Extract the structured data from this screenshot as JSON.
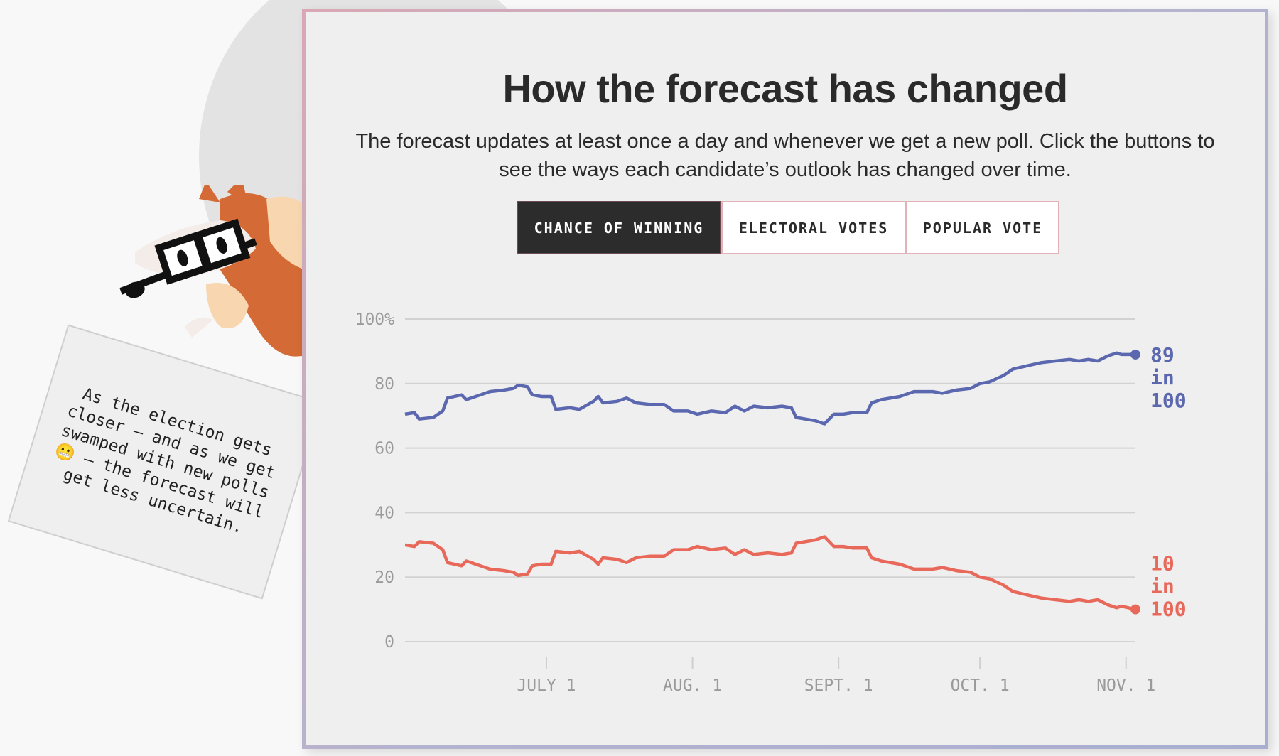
{
  "header": {
    "title": "How the forecast has changed",
    "subtitle": "The forecast updates at least once a day and whenever we get a new poll. Click the buttons to see the ways each candidate’s outlook has changed over time."
  },
  "tabs": [
    {
      "label": "CHANCE OF WINNING",
      "active": true
    },
    {
      "label": "ELECTORAL VOTES",
      "active": false
    },
    {
      "label": "POPULAR VOTE",
      "active": false
    }
  ],
  "note": {
    "text": "As the election gets closer — and as we get swamped with new polls 😬 — the forecast will get less uncertain."
  },
  "chart_data": {
    "type": "line",
    "title": "How the forecast has changed",
    "xlabel": "",
    "ylabel": "Chance of winning",
    "x_unit": "days since June 1",
    "xlim": [
      0,
      155
    ],
    "ylim": [
      0,
      100
    ],
    "y_ticks": [
      {
        "v": 100,
        "label": "100%"
      },
      {
        "v": 80,
        "label": "80"
      },
      {
        "v": 60,
        "label": "60"
      },
      {
        "v": 40,
        "label": "40"
      },
      {
        "v": 20,
        "label": "20"
      },
      {
        "v": 0,
        "label": "0"
      }
    ],
    "x_ticks": [
      {
        "v": 30,
        "label": "JULY 1"
      },
      {
        "v": 61,
        "label": "AUG. 1"
      },
      {
        "v": 92,
        "label": "SEPT. 1"
      },
      {
        "v": 122,
        "label": "OCT. 1"
      },
      {
        "v": 153,
        "label": "NOV. 1"
      }
    ],
    "x": [
      0,
      2,
      3,
      6,
      8,
      9,
      12,
      13,
      16,
      18,
      21,
      23,
      24,
      26,
      27,
      29,
      31,
      32,
      35,
      37,
      40,
      41,
      42,
      45,
      47,
      49,
      52,
      55,
      57,
      60,
      62,
      65,
      68,
      70,
      72,
      74,
      77,
      80,
      82,
      83,
      87,
      89,
      91,
      93,
      95,
      98,
      99,
      101,
      105,
      108,
      112,
      114,
      117,
      120,
      122,
      124,
      127,
      129,
      132,
      135,
      138,
      141,
      143,
      145,
      147,
      149,
      151,
      152,
      155
    ],
    "series": [
      {
        "name": "blue",
        "color": "#5b68b0",
        "end_label": [
          "89",
          "in",
          "100"
        ],
        "values": [
          70.5,
          71,
          69,
          69.5,
          71.5,
          75.5,
          76.5,
          75,
          76.5,
          77.5,
          78,
          78.5,
          79.5,
          79,
          76.5,
          76,
          76,
          72,
          72.5,
          72,
          74.5,
          76,
          74,
          74.5,
          75.5,
          74,
          73.5,
          73.5,
          71.5,
          71.5,
          70.5,
          71.5,
          71,
          73,
          71.5,
          73,
          72.5,
          73,
          72.5,
          69.5,
          68.5,
          67.5,
          70.5,
          70.5,
          71,
          71,
          74,
          75,
          76,
          77.5,
          77.5,
          77,
          78,
          78.5,
          80,
          80.5,
          82.5,
          84.5,
          85.5,
          86.5,
          87,
          87.5,
          87,
          87.5,
          87,
          88.5,
          89.5,
          89,
          89
        ]
      },
      {
        "name": "red",
        "color": "#e8685a",
        "end_label": [
          "10",
          "in",
          "100"
        ],
        "values": [
          30,
          29.5,
          31,
          30.5,
          28.5,
          24.5,
          23.5,
          25,
          23.5,
          22.5,
          22,
          21.5,
          20.5,
          21,
          23.5,
          24,
          24,
          28,
          27.5,
          28,
          25.5,
          24,
          26,
          25.5,
          24.5,
          26,
          26.5,
          26.5,
          28.5,
          28.5,
          29.5,
          28.5,
          29,
          27,
          28.5,
          27,
          27.5,
          27,
          27.5,
          30.5,
          31.5,
          32.5,
          29.5,
          29.5,
          29,
          29,
          26,
          25,
          24,
          22.5,
          22.5,
          23,
          22,
          21.5,
          20,
          19.5,
          17.5,
          15.5,
          14.5,
          13.5,
          13,
          12.5,
          13,
          12.5,
          13,
          11.5,
          10.5,
          11,
          10
        ]
      }
    ],
    "grid": true,
    "legend": "none"
  }
}
